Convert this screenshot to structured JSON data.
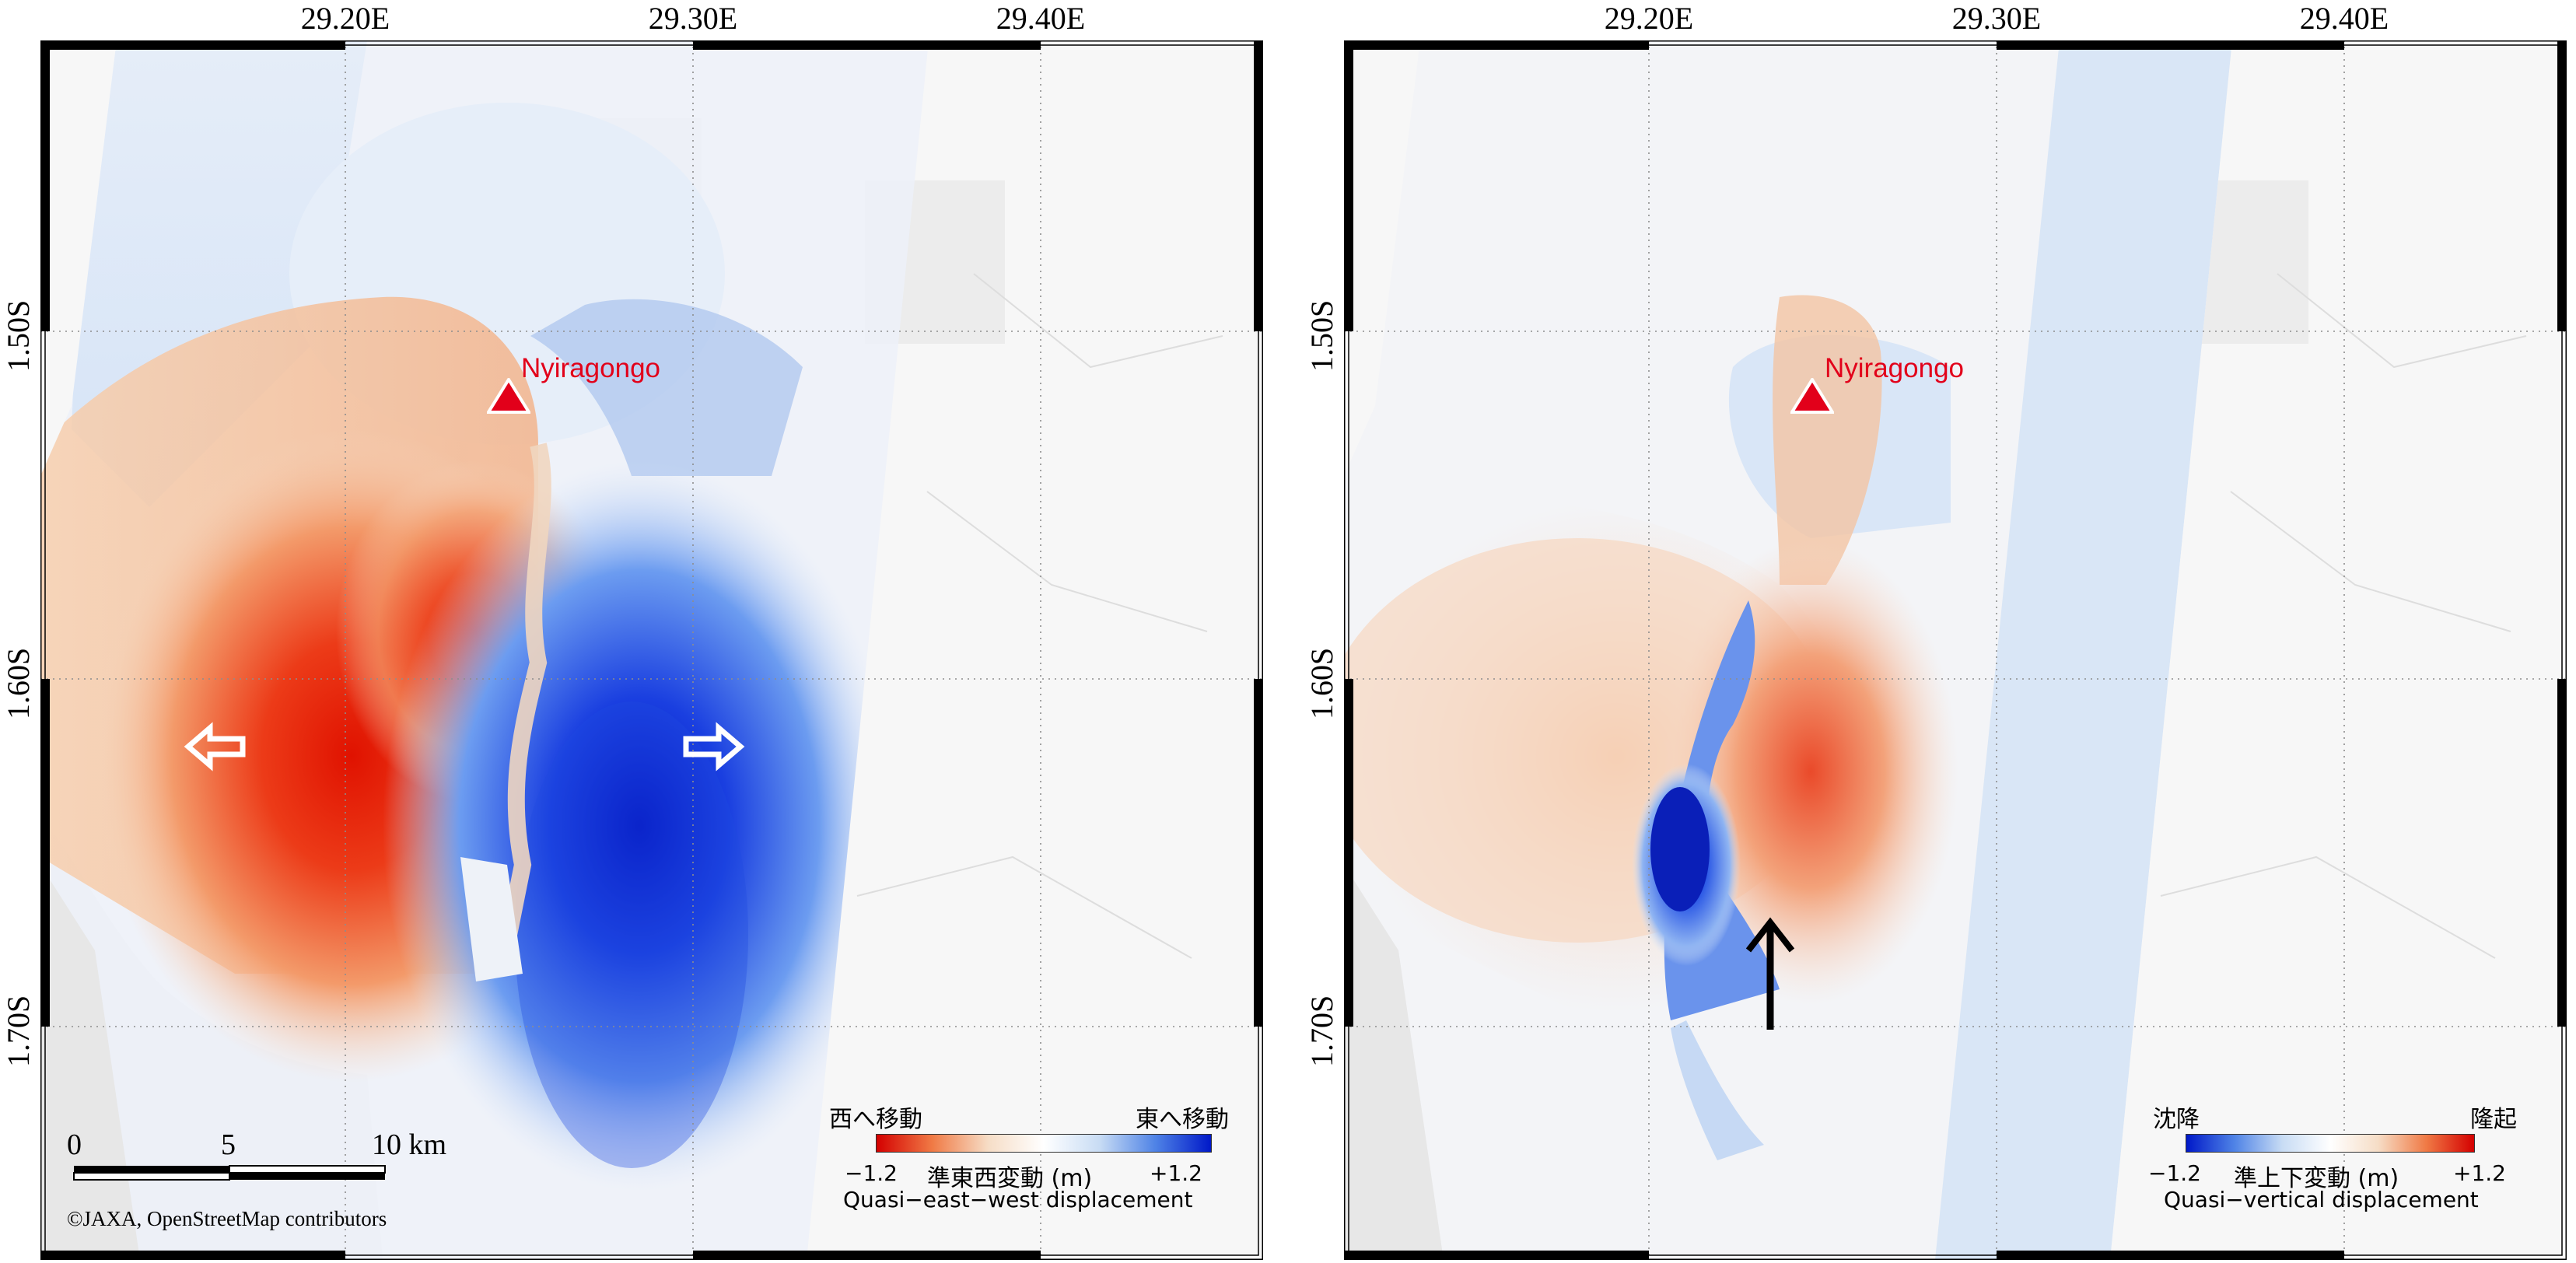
{
  "maps": [
    {
      "longitude_labels": [
        "29.20E",
        "29.30E",
        "29.40E"
      ],
      "latitude_labels": [
        "1.50S",
        "1.60S",
        "1.70S"
      ],
      "volcano": {
        "name": "Nyiragongo",
        "marker": "red-triangle-icon"
      },
      "arrows": [
        {
          "icon": "left-arrow-icon",
          "direction": "west",
          "style": "white-outline"
        },
        {
          "icon": "right-arrow-icon",
          "direction": "east",
          "style": "white-outline"
        }
      ],
      "legend": {
        "left_label": "西へ移動",
        "right_label": "東へ移動",
        "min": "−1.2",
        "max": "+1.2",
        "title_ja": "準東西変動 (m)",
        "title_en": "Quasi−east−west displacement",
        "colors": [
          "#d40000",
          "#f07a45",
          "#f6ddc6",
          "#ffffff",
          "#c8dcf4",
          "#4f83e6",
          "#0018c8"
        ]
      },
      "scale_bar": {
        "ticks": [
          "0",
          "5",
          "10 km"
        ]
      },
      "credit": "©JAXA, OpenStreetMap contributors"
    },
    {
      "longitude_labels": [
        "29.20E",
        "29.30E",
        "29.40E"
      ],
      "latitude_labels": [
        "1.50S",
        "1.60S",
        "1.70S"
      ],
      "volcano": {
        "name": "Nyiragongo",
        "marker": "red-triangle-icon"
      },
      "arrows": [
        {
          "icon": "up-arrow-icon",
          "direction": "north",
          "style": "black"
        }
      ],
      "legend": {
        "left_label": "沈降",
        "right_label": "隆起",
        "min": "−1.2",
        "max": "+1.2",
        "title_ja": "準上下変動 (m)",
        "title_en": "Quasi−vertical displacement",
        "colors": [
          "#0018c8",
          "#4f83e6",
          "#c8dcf4",
          "#ffffff",
          "#f6ddc6",
          "#f07a45",
          "#d40000"
        ]
      }
    }
  ]
}
